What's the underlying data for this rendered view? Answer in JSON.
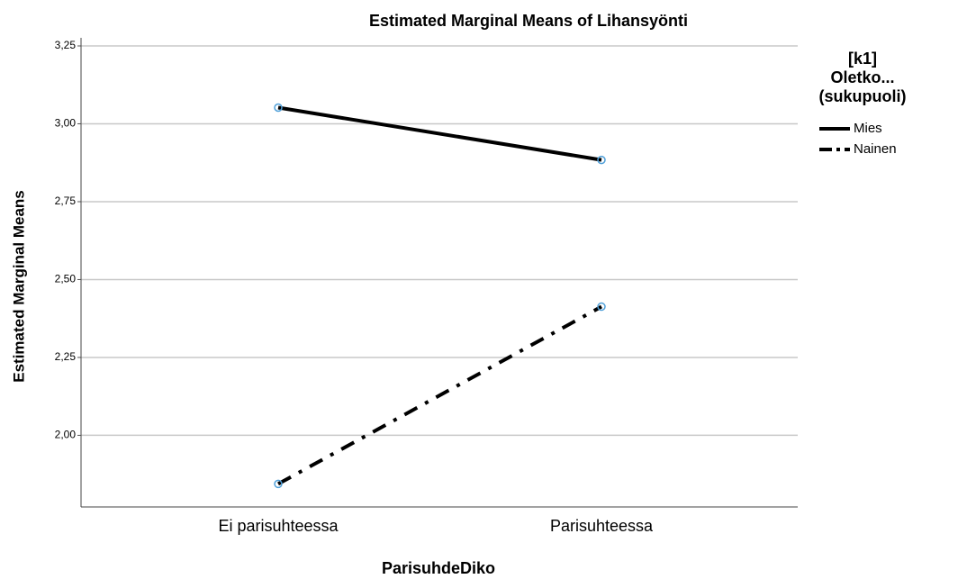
{
  "chart_data": {
    "type": "line",
    "title": "Estimated Marginal Means of Lihansyönti",
    "x_label": "ParisuhdeDiko",
    "y_label": "Estimated Marginal Means",
    "legend_title": [
      "[k1]",
      "Oletko...",
      "(sukupuoli)"
    ],
    "categories": [
      "Ei parisuhteessa",
      "Parisuhteessa"
    ],
    "series": [
      {
        "name": "Mies",
        "color": "#000000",
        "dash": "solid",
        "values": [
          3.052,
          2.884
        ]
      },
      {
        "name": "Nainen",
        "color": "#000000",
        "dash": "dashdot",
        "values": [
          1.844,
          2.413
        ]
      }
    ],
    "marker_color": "#4f9fd8",
    "ylim": [
      1.77,
      3.276
    ],
    "yticks": [
      {
        "value": 2.0,
        "label": "2,00"
      },
      {
        "value": 2.25,
        "label": "2,25"
      },
      {
        "value": 2.5,
        "label": "2,50"
      },
      {
        "value": 2.75,
        "label": "2,75"
      },
      {
        "value": 3.0,
        "label": "3,00"
      },
      {
        "value": 3.25,
        "label": "3,25"
      }
    ],
    "grid": true,
    "legend": "right"
  }
}
